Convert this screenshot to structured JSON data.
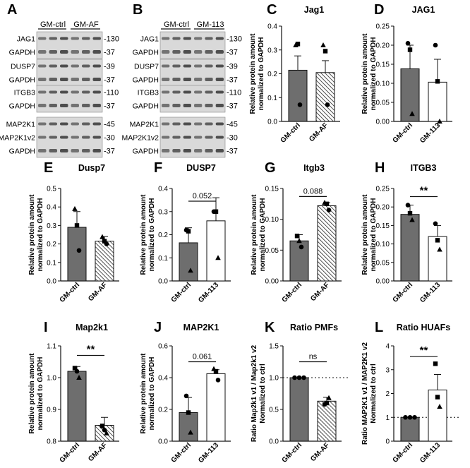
{
  "colors": {
    "ctrl_bar": "#6e6e6e",
    "axis": "#111111",
    "blot_bg": "#d9d9d9",
    "band": "#1f1f1f"
  },
  "blot_panels": [
    {
      "letter": "A",
      "groups": [
        "GM-ctrl",
        "GM-AF"
      ],
      "blots": [
        {
          "rows": [
            {
              "label": "JAG1",
              "mw": "-130"
            },
            {
              "label": "GAPDH",
              "mw": "-37"
            }
          ]
        },
        {
          "rows": [
            {
              "label": "DUSP7",
              "mw": "-39"
            },
            {
              "label": "GAPDH",
              "mw": "-37"
            }
          ]
        },
        {
          "rows": [
            {
              "label": "ITGB3",
              "mw": "-110"
            },
            {
              "label": "GAPDH",
              "mw": "-37"
            }
          ]
        },
        {
          "rows": [
            {
              "label": "MAP2K1",
              "mw": "-45"
            },
            {
              "label": "MAP2K1v2",
              "mw": "-30"
            },
            {
              "label": "GAPDH",
              "mw": "-37"
            }
          ]
        }
      ]
    },
    {
      "letter": "B",
      "groups": [
        "GM-ctrl",
        "GM-113"
      ],
      "blots": [
        {
          "rows": [
            {
              "label": "JAG1",
              "mw": "-130"
            },
            {
              "label": "GAPDH",
              "mw": "-37"
            }
          ]
        },
        {
          "rows": [
            {
              "label": "DUSP7",
              "mw": "-39"
            },
            {
              "label": "GAPDH",
              "mw": "-37"
            }
          ]
        },
        {
          "rows": [
            {
              "label": "ITGB3",
              "mw": "-110"
            },
            {
              "label": "GAPDH",
              "mw": "-37"
            }
          ]
        },
        {
          "rows": [
            {
              "label": "MAP2K1",
              "mw": "-45"
            },
            {
              "label": "MAP2K1v2",
              "mw": "-30"
            },
            {
              "label": "GAPDH",
              "mw": "-37"
            }
          ]
        }
      ]
    }
  ],
  "chart_data": [
    {
      "letter": "C",
      "type": "bar",
      "title": "Jag1",
      "ylabel": [
        "Relative protein amount",
        "normalized to GAPDH"
      ],
      "categories": [
        "GM-ctrl",
        "GM-AF"
      ],
      "values": [
        0.215,
        0.205
      ],
      "errors": [
        0.06,
        0.05
      ],
      "ylim": [
        0,
        0.4
      ],
      "yticks": [
        "0.0",
        "0.1",
        "0.2",
        "0.3",
        "0.4"
      ],
      "refline": null,
      "significance": null,
      "points": [
        [
          {
            "m": "tri",
            "v": 0.32
          },
          {
            "m": "sq",
            "v": 0.325
          },
          {
            "m": "dot",
            "v": 0.07
          }
        ],
        [
          {
            "m": "tri",
            "v": 0.32
          },
          {
            "m": "sq",
            "v": 0.295
          },
          {
            "m": "dot",
            "v": 0.07
          }
        ]
      ]
    },
    {
      "letter": "D",
      "type": "bar",
      "title": "JAG1",
      "ylabel": [
        "Relative protein amount",
        "normalized to GAPDH"
      ],
      "categories": [
        "GM-ctrl",
        "GM-113"
      ],
      "values": [
        0.138,
        0.103
      ],
      "errors": [
        0.062,
        0.06
      ],
      "ylim": [
        0,
        0.25
      ],
      "yticks": [
        "0.00",
        "0.05",
        "0.10",
        "0.15",
        "0.20",
        "0.25"
      ],
      "refline": null,
      "significance": null,
      "points": [
        [
          {
            "m": "dot",
            "v": 0.205
          },
          {
            "m": "sq",
            "v": 0.188
          },
          {
            "m": "tri",
            "v": 0.02
          }
        ],
        [
          {
            "m": "dot",
            "v": 0.2
          },
          {
            "m": "sq",
            "v": 0.105
          },
          {
            "m": "tri",
            "v": 0.0
          }
        ]
      ]
    },
    {
      "letter": "E",
      "type": "bar",
      "title": "Dusp7",
      "ylabel": [
        "Relative protein amount",
        "normalized to GAPDH"
      ],
      "categories": [
        "GM-ctrl",
        "GM-AF"
      ],
      "values": [
        0.29,
        0.215
      ],
      "errors": [
        0.085,
        0.025
      ],
      "ylim": [
        0,
        0.5
      ],
      "yticks": [
        "0.0",
        "0.1",
        "0.2",
        "0.3",
        "0.4",
        "0.5"
      ],
      "refline": null,
      "significance": null,
      "points": [
        [
          {
            "m": "tri",
            "v": 0.39
          },
          {
            "m": "sq",
            "v": 0.3
          },
          {
            "m": "dot",
            "v": 0.165
          }
        ],
        [
          {
            "m": "tri",
            "v": 0.238
          },
          {
            "m": "sq",
            "v": 0.215
          },
          {
            "m": "dot",
            "v": 0.2
          }
        ]
      ]
    },
    {
      "letter": "F",
      "type": "bar",
      "title": "DUSP7",
      "ylabel": [
        "Relative protein amount",
        "normalized to GAPDH"
      ],
      "categories": [
        "GM-ctrl",
        "GM-113"
      ],
      "values": [
        0.165,
        0.26
      ],
      "errors": [
        0.065,
        0.1
      ],
      "ylim": [
        0,
        0.4
      ],
      "yticks": [
        "0.0",
        "0.1",
        "0.2",
        "0.3",
        "0.4"
      ],
      "refline": null,
      "significance": {
        "label": "0.052",
        "bold": false,
        "value": 0.345
      },
      "points": [
        [
          {
            "m": "dot",
            "v": 0.22
          },
          {
            "m": "sq",
            "v": 0.215
          },
          {
            "m": "tri",
            "v": 0.045
          }
        ],
        [
          {
            "m": "dot",
            "v": 0.3
          },
          {
            "m": "sq",
            "v": 0.3
          },
          {
            "m": "tri",
            "v": 0.1
          }
        ]
      ]
    },
    {
      "letter": "G",
      "type": "bar",
      "title": "Itgb3",
      "ylabel": [
        "Relative protein amount",
        "normalized to GAPDH"
      ],
      "categories": [
        "GM-ctrl",
        "GM-AF"
      ],
      "values": [
        0.065,
        0.122
      ],
      "errors": [
        0.01,
        0.005
      ],
      "ylim": [
        0,
        0.15
      ],
      "yticks": [
        "0.00",
        "0.05",
        "0.10",
        "0.15"
      ],
      "refline": null,
      "significance": {
        "label": "0.088",
        "bold": false,
        "value": 0.137
      },
      "points": [
        [
          {
            "m": "sq",
            "v": 0.073
          },
          {
            "m": "tri",
            "v": 0.065
          },
          {
            "m": "dot",
            "v": 0.055
          }
        ],
        [
          {
            "m": "tri",
            "v": 0.127
          },
          {
            "m": "sq",
            "v": 0.125
          },
          {
            "m": "dot",
            "v": 0.115
          }
        ]
      ]
    },
    {
      "letter": "H",
      "type": "bar",
      "title": "ITGB3",
      "ylabel": [
        "Relative protein amount",
        "normalized to GAPDH"
      ],
      "categories": [
        "GM-ctrl",
        "GM-113"
      ],
      "values": [
        0.18,
        0.12
      ],
      "errors": [
        0.025,
        0.03
      ],
      "ylim": [
        0,
        0.25
      ],
      "yticks": [
        "0.00",
        "0.05",
        "0.10",
        "0.15",
        "0.20",
        "0.25"
      ],
      "refline": null,
      "significance": {
        "label": "**",
        "bold": true,
        "value": 0.228
      },
      "points": [
        [
          {
            "m": "dot",
            "v": 0.205
          },
          {
            "m": "sq",
            "v": 0.183
          },
          {
            "m": "tri",
            "v": 0.165
          }
        ],
        [
          {
            "m": "dot",
            "v": 0.155
          },
          {
            "m": "sq",
            "v": 0.11
          },
          {
            "m": "tri",
            "v": 0.085
          }
        ]
      ]
    },
    {
      "letter": "I",
      "type": "bar",
      "title": "Map2k1",
      "ylabel": [
        "Relative protein amount",
        "normalized to GAPDH"
      ],
      "categories": [
        "GM-ctrl",
        "GM-AF"
      ],
      "values": [
        1.02,
        0.85
      ],
      "errors": [
        0.015,
        0.025
      ],
      "ylim": [
        0.8,
        1.1
      ],
      "yticks": [
        "0.8",
        "0.9",
        "1.0",
        "1.1"
      ],
      "refline": null,
      "significance": {
        "label": "**",
        "bold": true,
        "value": 1.07
      },
      "points": [
        [
          {
            "m": "sq",
            "v": 1.03
          },
          {
            "m": "dot",
            "v": 1.02
          },
          {
            "m": "tri",
            "v": 1.0
          }
        ],
        [
          {
            "m": "sq",
            "v": 0.848
          },
          {
            "m": "dot",
            "v": 0.835
          },
          {
            "m": "tri",
            "v": 0.825
          }
        ]
      ]
    },
    {
      "letter": "J",
      "type": "bar",
      "title": "MAP2K1",
      "ylabel": [
        "Relative protein amount",
        "normalized to GAPDH"
      ],
      "categories": [
        "GM-ctrl",
        "GM-113"
      ],
      "values": [
        0.18,
        0.425
      ],
      "errors": [
        0.095,
        0.025
      ],
      "ylim": [
        0,
        0.6
      ],
      "yticks": [
        "0.0",
        "0.2",
        "0.4",
        "0.6"
      ],
      "refline": null,
      "significance": {
        "label": "0.061",
        "bold": false,
        "value": 0.5
      },
      "points": [
        [
          {
            "m": "dot",
            "v": 0.285
          },
          {
            "m": "sq",
            "v": 0.18
          },
          {
            "m": "tri",
            "v": 0.055
          }
        ],
        [
          {
            "m": "tri",
            "v": 0.455
          },
          {
            "m": "sq",
            "v": 0.44
          },
          {
            "m": "dot",
            "v": 0.385
          }
        ]
      ]
    },
    {
      "letter": "K",
      "type": "bar",
      "title": "Ratio PMFs",
      "ylabel": [
        "Ratio Map2k1 v1 / Map2k1 v2",
        "Normalized to ctrl"
      ],
      "categories": [
        "GM-ctrl",
        "GM-AF"
      ],
      "values": [
        1.0,
        0.63
      ],
      "errors": [
        0.0,
        0.06
      ],
      "ylim": [
        0,
        1.5
      ],
      "yticks": [
        "0.0",
        "0.5",
        "1.0",
        "1.5"
      ],
      "refline": 1.0,
      "significance": {
        "label": "ns",
        "bold": false,
        "value": 1.25
      },
      "points": [
        [
          {
            "m": "dot",
            "v": 1.0
          },
          {
            "m": "dot",
            "v": 1.0
          },
          {
            "m": "dot",
            "v": 1.0
          }
        ],
        [
          {
            "m": "dot",
            "v": 0.58
          },
          {
            "m": "sq",
            "v": 0.6
          },
          {
            "m": "tri",
            "v": 0.68
          }
        ]
      ]
    },
    {
      "letter": "L",
      "type": "bar",
      "title": "Ratio HUAFs",
      "ylabel": [
        "Ratio MAP2K1 v1 / MAP2K1 v2",
        "Normalized to ctrl"
      ],
      "categories": [
        "GM-ctrl",
        "GM-113"
      ],
      "values": [
        1.0,
        2.15
      ],
      "errors": [
        0.0,
        0.65
      ],
      "ylim": [
        0,
        4
      ],
      "yticks": [
        "0",
        "1",
        "2",
        "3",
        "4"
      ],
      "refline": 1.0,
      "significance": {
        "label": "**",
        "bold": true,
        "value": 3.55
      },
      "points": [
        [
          {
            "m": "dot",
            "v": 1.0
          },
          {
            "m": "dot",
            "v": 1.0
          },
          {
            "m": "dot",
            "v": 1.0
          }
        ],
        [
          {
            "m": "sq",
            "v": 3.25
          },
          {
            "m": "sq",
            "v": 1.85
          },
          {
            "m": "tri",
            "v": 1.45
          }
        ]
      ]
    }
  ]
}
